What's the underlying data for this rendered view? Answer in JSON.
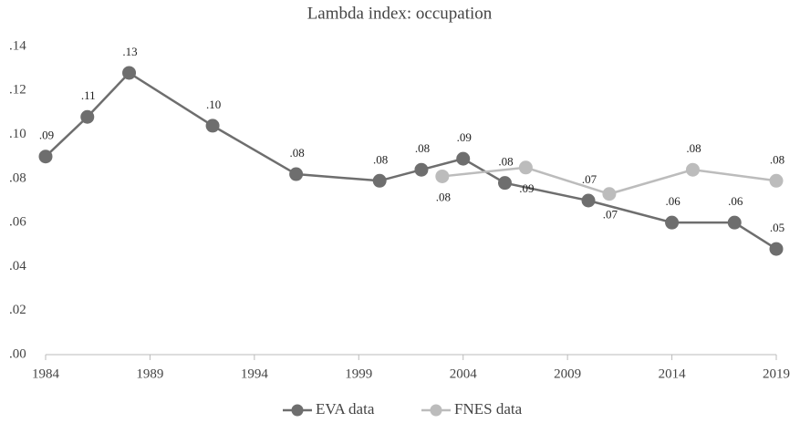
{
  "chart_data": {
    "type": "line",
    "title": "Lambda index: occupation",
    "series": [
      {
        "name": "EVA data",
        "color": "#6e6e6e",
        "x": [
          1984,
          1986,
          1988,
          1992,
          1996,
          2000,
          2002,
          2004,
          2006,
          2010,
          2014,
          2017,
          2019
        ],
        "values": [
          0.09,
          0.108,
          0.128,
          0.104,
          0.082,
          0.079,
          0.084,
          0.089,
          0.078,
          0.07,
          0.06,
          0.06,
          0.048
        ],
        "value_labels": [
          ".09",
          ".11",
          ".13",
          ".10",
          ".08",
          ".08",
          ".08",
          ".09",
          ".08",
          ".07",
          ".06",
          ".06",
          ".05"
        ]
      },
      {
        "name": "FNES data",
        "color": "#bcbcbc",
        "x": [
          2003,
          2007,
          2011,
          2015,
          2019
        ],
        "values": [
          0.081,
          0.085,
          0.073,
          0.084,
          0.079
        ],
        "value_labels": [
          ".08",
          ".09",
          ".07",
          ".08",
          ".08"
        ]
      }
    ],
    "xlim": [
      1984,
      2019
    ],
    "xticks": [
      1984,
      1989,
      1994,
      1999,
      2004,
      2009,
      2014,
      2019
    ],
    "ylim": [
      0,
      0.14
    ],
    "yticks": [
      {
        "value": 0,
        "label": ".00"
      },
      {
        "value": 0.02,
        "label": ".02"
      },
      {
        "value": 0.04,
        "label": ".04"
      },
      {
        "value": 0.06,
        "label": ".06"
      },
      {
        "value": 0.08,
        "label": ".08"
      },
      {
        "value": 0.1,
        "label": ".10"
      },
      {
        "value": 0.12,
        "label": ".12"
      },
      {
        "value": 0.14,
        "label": ".14"
      }
    ],
    "grid": false,
    "legend": "bottom"
  }
}
